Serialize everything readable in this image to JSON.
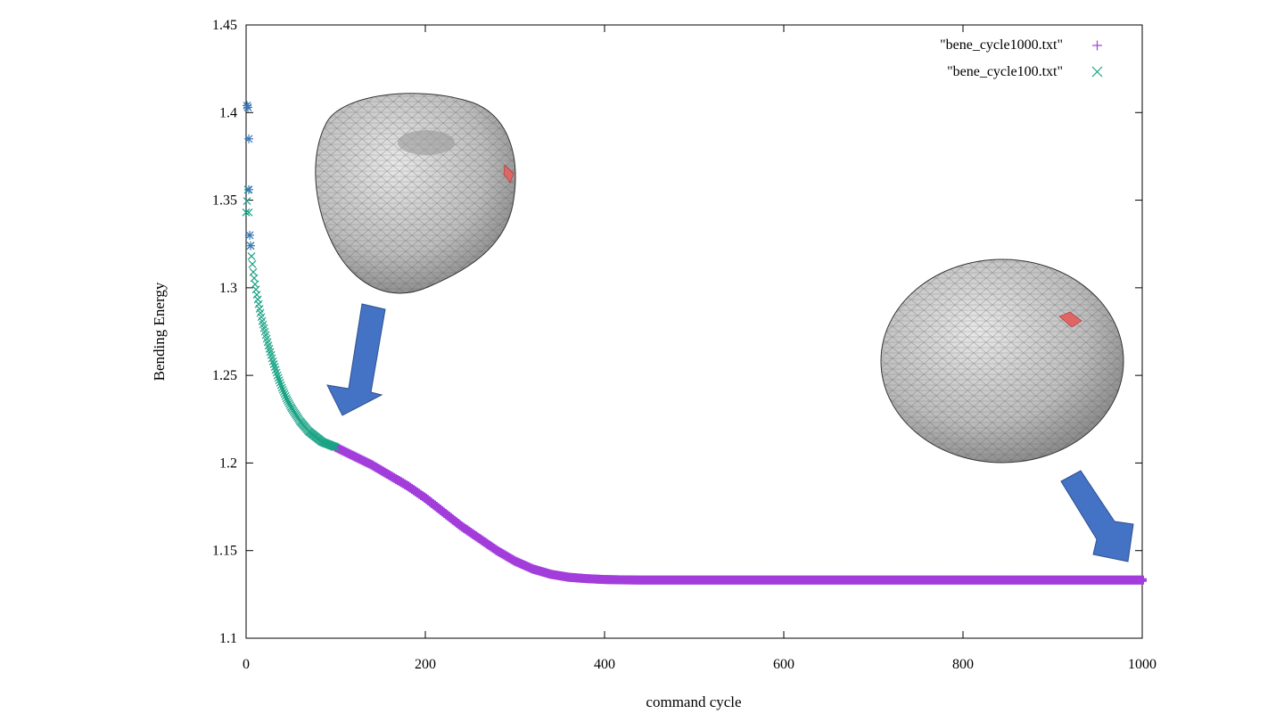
{
  "chart_data": {
    "type": "scatter",
    "xlabel": "command cycle",
    "ylabel": "Bending Energy",
    "xlim": [
      0,
      1000
    ],
    "ylim": [
      1.1,
      1.45
    ],
    "x_ticks": [
      "0",
      "200",
      "400",
      "600",
      "800",
      "1000"
    ],
    "y_ticks": [
      "1.1",
      "1.15",
      "1.2",
      "1.25",
      "1.3",
      "1.35",
      "1.4",
      "1.45"
    ],
    "grid": false,
    "legend_position": "top-right",
    "colors": {
      "series_1000": "#a23ddb",
      "series_100": "#1aa385",
      "early_points": "#3a78b5",
      "arrow": "#4472c4",
      "mesh": "#c4c4c4",
      "highlight": "#e06666"
    },
    "series": [
      {
        "name": "\"bene_cycle1000.txt\"",
        "marker": "+",
        "x": [
          100,
          120,
          140,
          160,
          180,
          200,
          220,
          240,
          260,
          280,
          300,
          320,
          340,
          360,
          380,
          400,
          420,
          440,
          460,
          480,
          500,
          550,
          600,
          650,
          700,
          750,
          800,
          850,
          900,
          950,
          1000
        ],
        "y": [
          1.209,
          1.204,
          1.199,
          1.193,
          1.187,
          1.18,
          1.172,
          1.164,
          1.157,
          1.15,
          1.144,
          1.1395,
          1.1365,
          1.1348,
          1.134,
          1.1335,
          1.1333,
          1.1332,
          1.1332,
          1.1332,
          1.1332,
          1.1332,
          1.1332,
          1.1332,
          1.1332,
          1.1332,
          1.1332,
          1.1332,
          1.1332,
          1.1332,
          1.1332
        ]
      },
      {
        "name": "\"bene_cycle100.txt\"",
        "marker": "x",
        "x": [
          0,
          2,
          4,
          6,
          8,
          10,
          12,
          15,
          18,
          21,
          25,
          30,
          35,
          40,
          45,
          50,
          55,
          60,
          65,
          70,
          75,
          80,
          85,
          90,
          95,
          100
        ],
        "y": [
          1.343,
          1.356,
          1.33,
          1.318,
          1.309,
          1.302,
          1.296,
          1.288,
          1.281,
          1.275,
          1.267,
          1.258,
          1.25,
          1.243,
          1.237,
          1.232,
          1.228,
          1.224,
          1.221,
          1.218,
          1.216,
          1.214,
          1.212,
          1.211,
          1.21,
          1.209
        ]
      },
      {
        "name": "",
        "marker": "*",
        "x": [
          1,
          2,
          3,
          3,
          4,
          5
        ],
        "y": [
          1.404,
          1.403,
          1.385,
          1.356,
          1.33,
          1.324
        ]
      }
    ]
  }
}
